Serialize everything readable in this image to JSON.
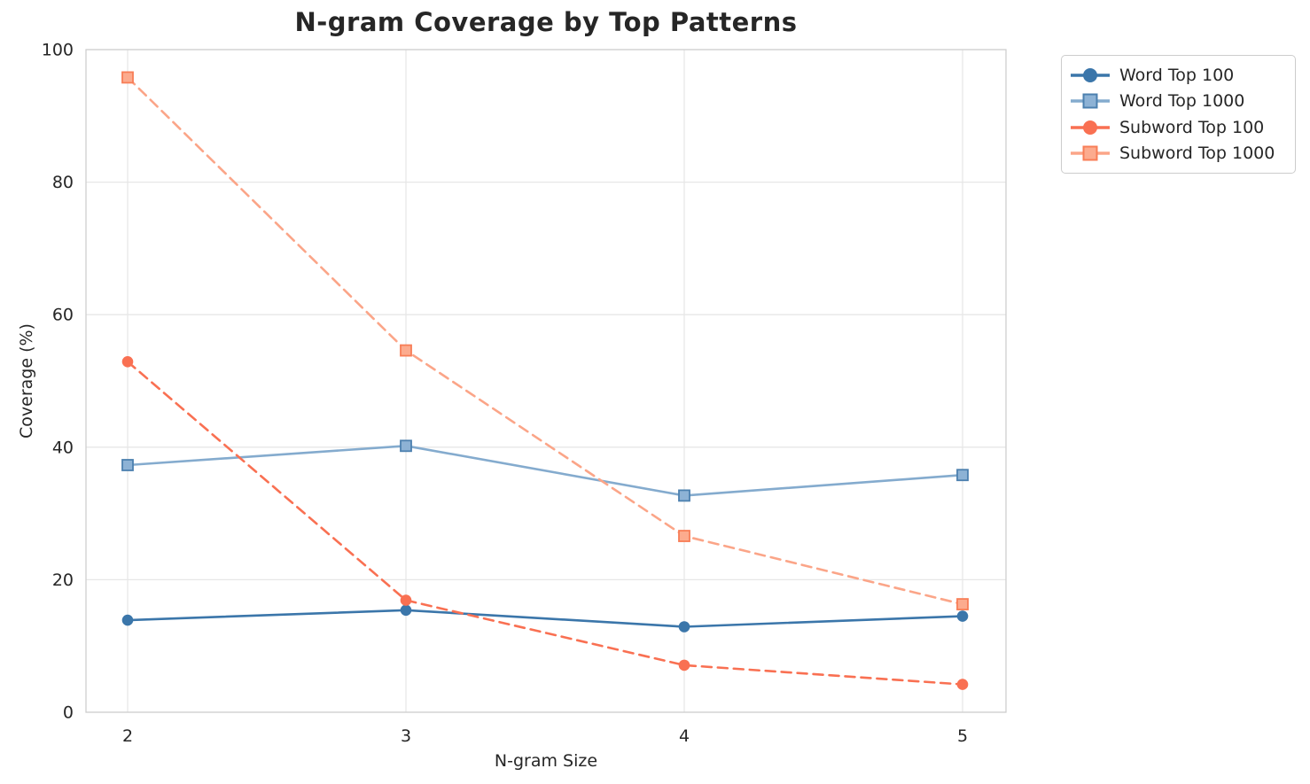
{
  "chart_data": {
    "type": "line",
    "title": "N-gram Coverage by Top Patterns",
    "xlabel": "N-gram Size",
    "ylabel": "Coverage (%)",
    "x": [
      2,
      3,
      4,
      5
    ],
    "xtick_labels": [
      "2",
      "3",
      "4",
      "5"
    ],
    "ylim": [
      0,
      100
    ],
    "yticks": [
      0,
      20,
      40,
      60,
      80,
      100
    ],
    "grid": true,
    "legend_position": "outside-upper-right",
    "series": [
      {
        "name": "Word Top 100",
        "values": [
          13.9,
          15.4,
          12.9,
          14.5
        ],
        "line_style": "solid",
        "marker": "circle",
        "color": "#3b76aa",
        "marker_fill": "#3b76aa",
        "marker_edge": "#3b76aa"
      },
      {
        "name": "Word Top 1000",
        "values": [
          37.3,
          40.2,
          32.7,
          35.8
        ],
        "line_style": "solid",
        "marker": "square",
        "color": "#84abce",
        "marker_fill": "#8db2d5",
        "marker_edge": "#4c80af"
      },
      {
        "name": "Subword Top 100",
        "values": [
          52.9,
          16.9,
          7.1,
          4.2
        ],
        "line_style": "dashed",
        "marker": "circle",
        "color": "#f97052",
        "marker_fill": "#f97052",
        "marker_edge": "#f97052"
      },
      {
        "name": "Subword Top 1000",
        "values": [
          95.8,
          54.6,
          26.6,
          16.3
        ],
        "line_style": "dashed",
        "marker": "square",
        "color": "#fba588",
        "marker_fill": "#fcab8e",
        "marker_edge": "#f87e57"
      }
    ]
  },
  "colors": {
    "background": "#ffffff",
    "grid": "#e7e7e7",
    "spine": "#cfcfcf",
    "text": "#262626"
  }
}
